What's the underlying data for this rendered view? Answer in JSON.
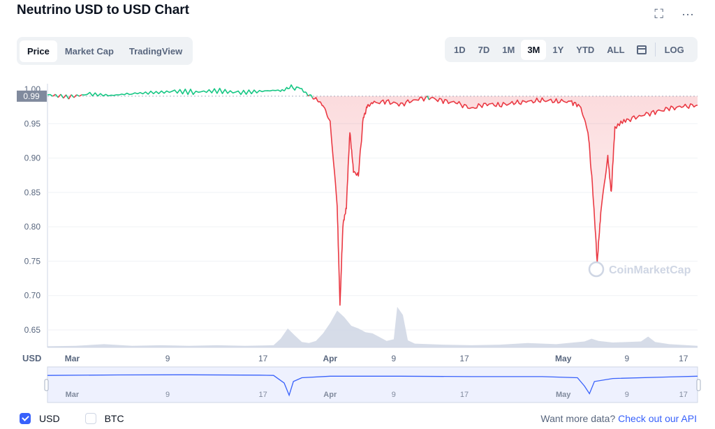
{
  "title": "Neutrino USD to USD Chart",
  "top_icons": {
    "expand": "⛶",
    "more": "···"
  },
  "tabs": [
    "Price",
    "Market Cap",
    "TradingView"
  ],
  "ranges": [
    "1D",
    "7D",
    "1M",
    "3M",
    "1Y",
    "YTD",
    "ALL"
  ],
  "log_label": "LOG",
  "currency_label": "USD",
  "watermark": "CoinMarketCap",
  "legend": {
    "usd": "USD",
    "btc": "BTC"
  },
  "more_data": {
    "text": "Want more data?",
    "link": "Check out our API"
  },
  "chart_data": {
    "type": "line",
    "y_ticks": [
      "0.65",
      "0.70",
      "0.75",
      "0.80",
      "0.85",
      "0.90",
      "0.95"
    ],
    "x_ticks": [
      "Mar",
      "9",
      "17",
      "Apr",
      "9",
      "17",
      "May",
      "9",
      "17"
    ],
    "baseline_label": "0.99",
    "baseline_value": 0.99,
    "top_cut_label": "1.00",
    "ylim": [
      0.625,
      1.005
    ],
    "price_series": [
      [
        0,
        0.992
      ],
      [
        3,
        0.989
      ],
      [
        6,
        0.993
      ],
      [
        9,
        0.991
      ],
      [
        12,
        0.994
      ],
      [
        15,
        0.995
      ],
      [
        18,
        0.997
      ],
      [
        21,
        0.996
      ],
      [
        24,
        0.998
      ],
      [
        27,
        0.995
      ],
      [
        30,
        0.997
      ],
      [
        33,
        0.999
      ],
      [
        34,
        1.003
      ],
      [
        36,
        1.001
      ],
      [
        37,
        0.992
      ],
      [
        38,
        0.985
      ],
      [
        39,
        0.975
      ],
      [
        40,
        0.95
      ],
      [
        41,
        0.83
      ],
      [
        41.4,
        0.686
      ],
      [
        41.8,
        0.8
      ],
      [
        42.3,
        0.83
      ],
      [
        42.8,
        0.94
      ],
      [
        43.3,
        0.88
      ],
      [
        44,
        0.875
      ],
      [
        44.7,
        0.96
      ],
      [
        45.3,
        0.975
      ],
      [
        46,
        0.98
      ],
      [
        48,
        0.982
      ],
      [
        50,
        0.978
      ],
      [
        52,
        0.985
      ],
      [
        54,
        0.988
      ],
      [
        56,
        0.983
      ],
      [
        58,
        0.98
      ],
      [
        60,
        0.972
      ],
      [
        62,
        0.979
      ],
      [
        64,
        0.977
      ],
      [
        66,
        0.98
      ],
      [
        68,
        0.982
      ],
      [
        70,
        0.984
      ],
      [
        72,
        0.983
      ],
      [
        74,
        0.982
      ],
      [
        75.5,
        0.975
      ],
      [
        76.5,
        0.94
      ],
      [
        77.2,
        0.85
      ],
      [
        77.8,
        0.747
      ],
      [
        78.3,
        0.82
      ],
      [
        79.3,
        0.9
      ],
      [
        79.8,
        0.85
      ],
      [
        80.3,
        0.945
      ],
      [
        82,
        0.955
      ],
      [
        84,
        0.962
      ],
      [
        86,
        0.967
      ],
      [
        88,
        0.972
      ],
      [
        90,
        0.975
      ],
      [
        92,
        0.977
      ]
    ],
    "volume_series": [
      [
        0,
        0.2
      ],
      [
        4,
        0.3
      ],
      [
        8,
        0.6
      ],
      [
        12,
        0.3
      ],
      [
        16,
        0.4
      ],
      [
        20,
        0.3
      ],
      [
        24,
        0.4
      ],
      [
        28,
        0.3
      ],
      [
        32,
        0.4
      ],
      [
        33,
        1.6
      ],
      [
        34,
        3.5
      ],
      [
        35,
        2.2
      ],
      [
        36,
        1.0
      ],
      [
        37,
        0.8
      ],
      [
        38,
        1.2
      ],
      [
        39,
        2.6
      ],
      [
        40,
        4.5
      ],
      [
        41,
        6.8
      ],
      [
        42,
        5.6
      ],
      [
        43,
        4.0
      ],
      [
        44,
        3.5
      ],
      [
        45,
        2.8
      ],
      [
        46,
        2.6
      ],
      [
        47,
        1.9
      ],
      [
        48,
        1.2
      ],
      [
        49,
        1.5
      ],
      [
        49.5,
        7.5
      ],
      [
        50.3,
        6.0
      ],
      [
        51,
        1.3
      ],
      [
        52,
        0.7
      ],
      [
        56,
        0.5
      ],
      [
        60,
        0.4
      ],
      [
        64,
        0.5
      ],
      [
        68,
        0.8
      ],
      [
        72,
        0.6
      ],
      [
        76,
        1.1
      ],
      [
        77,
        1.6
      ],
      [
        78,
        1.2
      ],
      [
        80,
        0.9
      ],
      [
        84,
        1.1
      ],
      [
        85,
        2.0
      ],
      [
        86,
        1.0
      ],
      [
        88,
        0.6
      ],
      [
        92,
        0.3
      ]
    ],
    "nav_series": [
      [
        0,
        0.99
      ],
      [
        10,
        0.993
      ],
      [
        20,
        0.994
      ],
      [
        30,
        0.992
      ],
      [
        32,
        0.99
      ],
      [
        33.5,
        0.94
      ],
      [
        34.2,
        0.86
      ],
      [
        34.8,
        0.95
      ],
      [
        36,
        0.975
      ],
      [
        40,
        0.985
      ],
      [
        50,
        0.985
      ],
      [
        60,
        0.982
      ],
      [
        70,
        0.982
      ],
      [
        75,
        0.975
      ],
      [
        76,
        0.92
      ],
      [
        76.7,
        0.87
      ],
      [
        77.4,
        0.95
      ],
      [
        80,
        0.97
      ],
      [
        88,
        0.98
      ],
      [
        92,
        0.985
      ]
    ],
    "colors": {
      "up": "#16c784",
      "down": "#ea3943",
      "volume": "#cfd6e4",
      "nav": "#3861fb"
    }
  }
}
